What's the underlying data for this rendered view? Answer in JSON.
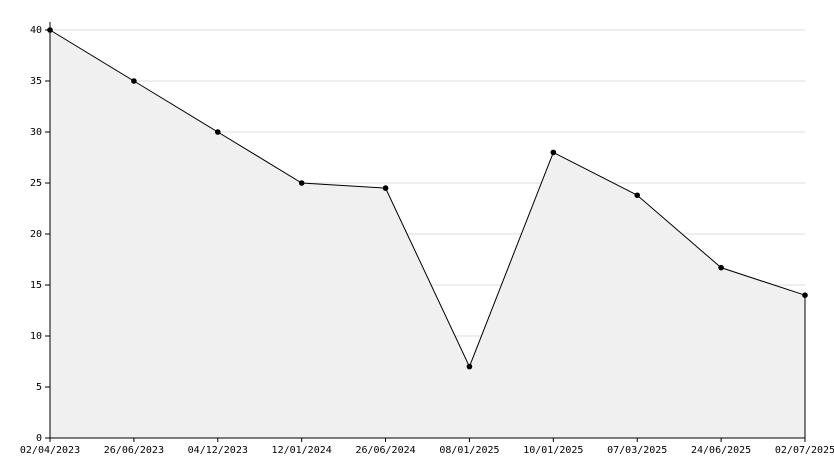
{
  "chart_data": {
    "type": "area",
    "categories": [
      "02/04/2023",
      "26/06/2023",
      "04/12/2023",
      "12/01/2024",
      "26/06/2024",
      "08/01/2025",
      "10/01/2025",
      "07/03/2025",
      "24/06/2025",
      "02/07/2025"
    ],
    "values": [
      40,
      35,
      30,
      25,
      24.5,
      7,
      28,
      23.8,
      16.7,
      14
    ],
    "color": "#000000",
    "fill": "#f0f0f0",
    "ylim": [
      0,
      40
    ],
    "yticks": [
      0,
      5,
      10,
      15,
      20,
      25,
      30,
      35,
      40
    ],
    "grid": true
  }
}
